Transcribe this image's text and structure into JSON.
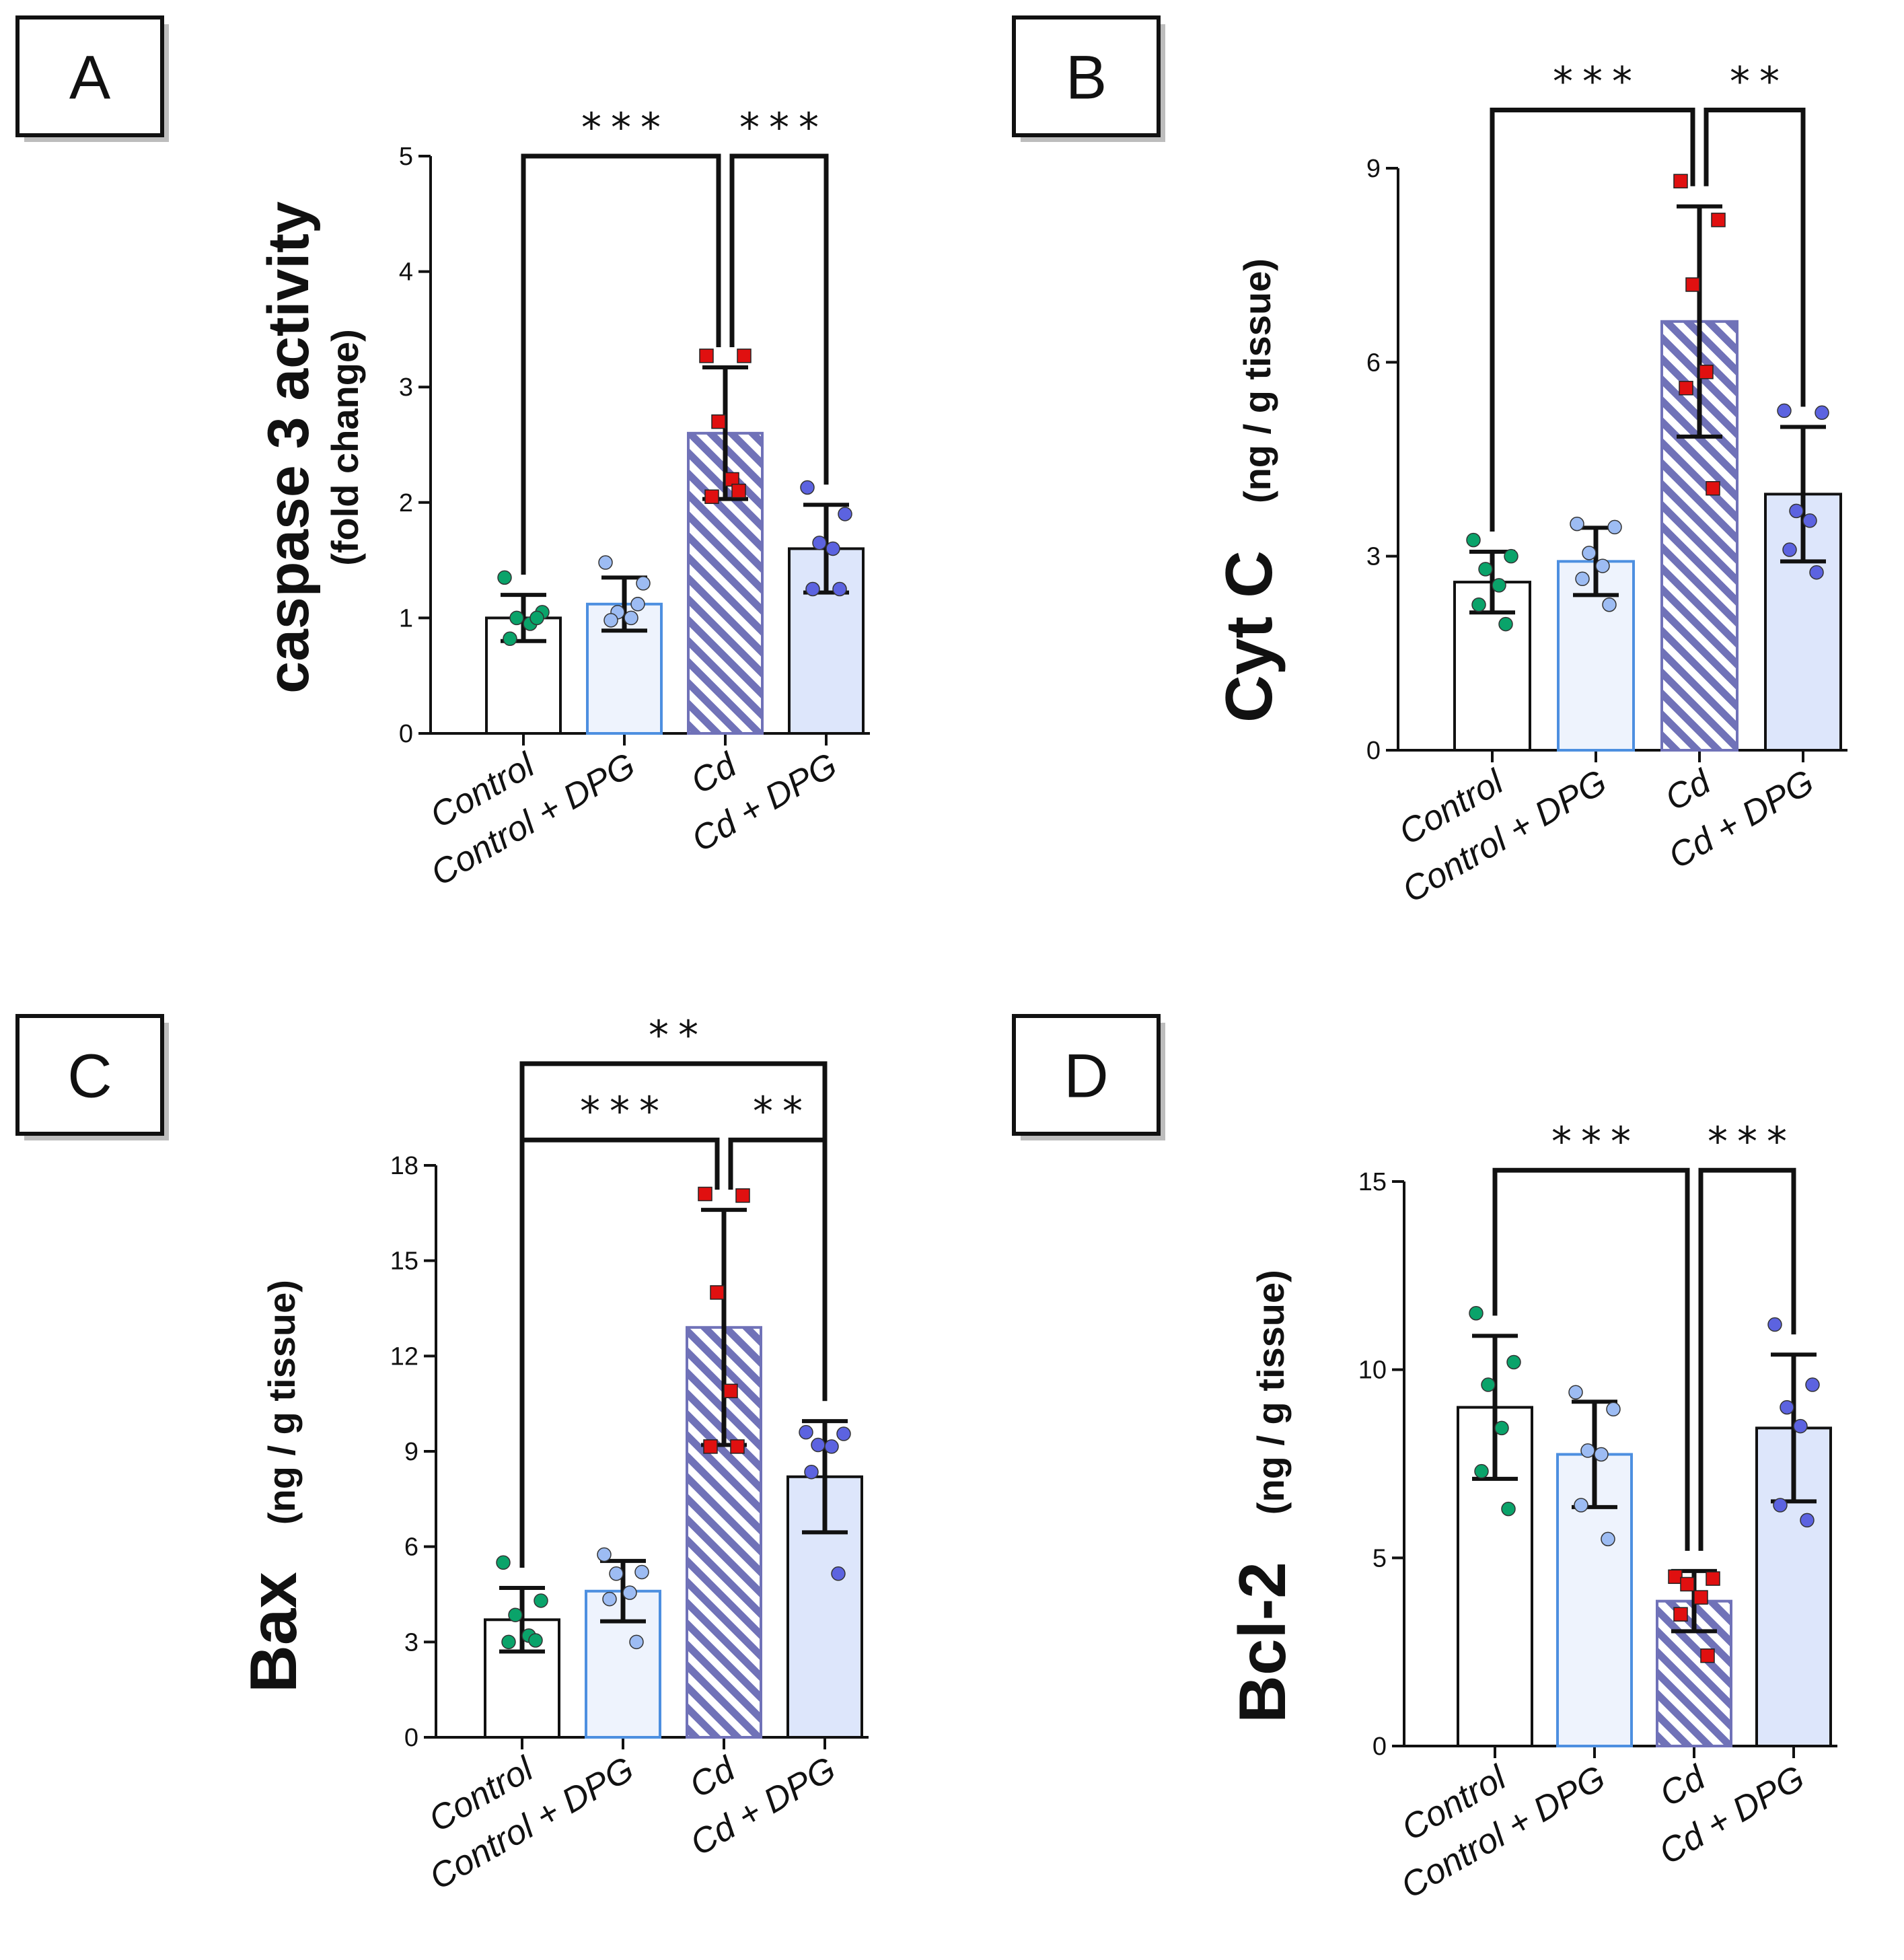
{
  "colors": {
    "control_fill": "#ffffff",
    "control_stroke": "#111111",
    "control_dpg_fill": "#eef3fd",
    "control_dpg_stroke": "#4d8fe0",
    "cd_hatch": "#7072b8",
    "cd_dpg_fill": "#dde6fb",
    "cd_dpg_stroke": "#111111",
    "point_control": "#0aa36a",
    "point_control_dpg": "#9dbcf3",
    "point_cd": "#e01010",
    "point_cd_dpg": "#5c63e0"
  },
  "chart_data": [
    {
      "panel": "A",
      "type": "bar",
      "ylabel": "caspase 3 activity",
      "ylabel_sub": "(fold change)",
      "categories": [
        "Control",
        "Control + DPG",
        "Cd",
        "Cd + DPG"
      ],
      "ylim": [
        0,
        5
      ],
      "yticks": [
        0,
        1,
        2,
        3,
        4,
        5
      ],
      "values": [
        1.0,
        1.12,
        2.6,
        1.6
      ],
      "errors": [
        0.2,
        0.23,
        0.57,
        0.38
      ],
      "points": [
        [
          1.35,
          1.05,
          1.0,
          0.95,
          0.82,
          1.0
        ],
        [
          1.48,
          1.3,
          1.05,
          1.0,
          0.98,
          1.12
        ],
        [
          3.27,
          3.27,
          2.7,
          2.2,
          2.05,
          2.1
        ],
        [
          2.13,
          1.9,
          1.65,
          1.6,
          1.25,
          1.25
        ]
      ],
      "comparisons": [
        {
          "from": 0,
          "to": 2,
          "label": "***",
          "y": 5.0
        },
        {
          "from": 2,
          "to": 3,
          "label": "***",
          "y": 5.0
        }
      ]
    },
    {
      "panel": "B",
      "type": "bar",
      "ylabel": "Cyt C",
      "ylabel_sub": "(ng / g tissue)",
      "categories": [
        "Control",
        "Control + DPG",
        "Cd",
        "Cd + DPG"
      ],
      "ylim": [
        0,
        9
      ],
      "yticks": [
        0,
        3,
        6,
        9
      ],
      "values": [
        2.6,
        2.92,
        6.63,
        3.96
      ],
      "errors": [
        0.47,
        0.52,
        1.78,
        1.04
      ],
      "points": [
        [
          3.25,
          3.0,
          2.8,
          2.55,
          2.25,
          1.95
        ],
        [
          3.5,
          3.45,
          3.05,
          2.85,
          2.65,
          2.25
        ],
        [
          8.8,
          8.2,
          7.2,
          5.85,
          5.6,
          4.05
        ],
        [
          5.25,
          5.22,
          3.7,
          3.55,
          3.1,
          2.75
        ]
      ],
      "comparisons": [
        {
          "from": 0,
          "to": 2,
          "label": "***",
          "y": 9.9
        },
        {
          "from": 2,
          "to": 3,
          "label": "**",
          "y": 9.9
        }
      ]
    },
    {
      "panel": "C",
      "type": "bar",
      "ylabel": "Bax",
      "ylabel_sub": "(ng / g tissue)",
      "categories": [
        "Control",
        "Control + DPG",
        "Cd",
        "Cd + DPG"
      ],
      "ylim": [
        0,
        18
      ],
      "yticks": [
        0,
        3,
        6,
        9,
        12,
        15,
        18
      ],
      "values": [
        3.7,
        4.6,
        12.9,
        8.2
      ],
      "errors": [
        1.0,
        0.95,
        3.7,
        1.75
      ],
      "points": [
        [
          5.5,
          4.3,
          3.85,
          3.2,
          3.0,
          3.05
        ],
        [
          5.75,
          5.2,
          5.15,
          4.55,
          4.35,
          3.0
        ],
        [
          17.1,
          17.05,
          14.0,
          10.9,
          9.15,
          9.15
        ],
        [
          9.6,
          9.55,
          9.2,
          9.15,
          8.35,
          5.15
        ]
      ],
      "comparisons": [
        {
          "from": 0,
          "to": 2,
          "label": "***",
          "y": 18.8
        },
        {
          "from": 2,
          "to": 3,
          "label": "**",
          "y": 18.8
        },
        {
          "from": 0,
          "to": 3,
          "label": "**",
          "y": 21.2
        }
      ]
    },
    {
      "panel": "D",
      "type": "bar",
      "ylabel": "Bcl-2",
      "ylabel_sub": "(ng / g tissue)",
      "categories": [
        "Control",
        "Control + DPG",
        "Cd",
        "Cd + DPG"
      ],
      "ylim": [
        0,
        15
      ],
      "yticks": [
        0,
        5,
        10,
        15
      ],
      "values": [
        9.0,
        7.75,
        3.85,
        8.45
      ],
      "errors": [
        1.9,
        1.4,
        0.8,
        1.95
      ],
      "points": [
        [
          11.5,
          10.2,
          9.6,
          8.45,
          7.3,
          6.3
        ],
        [
          9.4,
          8.95,
          7.85,
          7.75,
          6.4,
          5.5
        ],
        [
          4.5,
          4.45,
          4.3,
          3.95,
          3.5,
          2.4
        ],
        [
          11.2,
          9.6,
          9.0,
          8.5,
          6.4,
          6.0
        ]
      ],
      "comparisons": [
        {
          "from": 0,
          "to": 2,
          "label": "***",
          "y": 15.3
        },
        {
          "from": 2,
          "to": 3,
          "label": "***",
          "y": 15.3
        }
      ]
    }
  ]
}
